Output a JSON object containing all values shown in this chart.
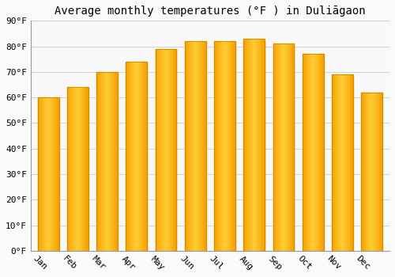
{
  "title": "Average monthly temperatures (°F ) in Duliāgaon",
  "months": [
    "Jan",
    "Feb",
    "Mar",
    "Apr",
    "May",
    "Jun",
    "Jul",
    "Aug",
    "Sep",
    "Oct",
    "Nov",
    "Dec"
  ],
  "values": [
    60,
    64,
    70,
    74,
    79,
    82,
    82,
    83,
    81,
    77,
    69,
    62
  ],
  "bar_color_center": "#FFCC33",
  "bar_color_edge": "#F5A000",
  "bar_edge_color": "#CC8800",
  "ylim": [
    0,
    90
  ],
  "yticks": [
    0,
    10,
    20,
    30,
    40,
    50,
    60,
    70,
    80,
    90
  ],
  "ytick_labels": [
    "0°F",
    "10°F",
    "20°F",
    "30°F",
    "40°F",
    "50°F",
    "60°F",
    "70°F",
    "80°F",
    "90°F"
  ],
  "background_color": "#fafafa",
  "plot_bg_color": "#f9f9f9",
  "grid_color": "#cccccc",
  "title_fontsize": 10,
  "tick_fontsize": 8,
  "xlabel_rotation": -45
}
